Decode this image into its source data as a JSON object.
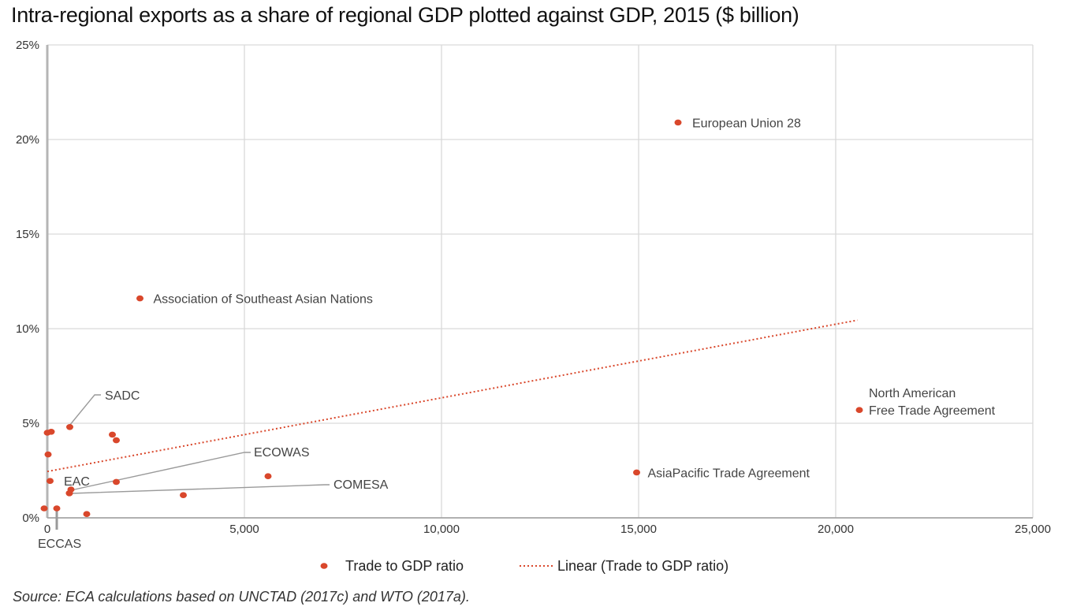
{
  "chart_data": {
    "type": "scatter",
    "title": "Intra-regional exports as a share of regional GDP plotted against GDP, 2015 ($ billion)",
    "xlabel": "",
    "ylabel": "",
    "xlim": [
      0,
      25000
    ],
    "ylim": [
      0,
      25
    ],
    "x_ticks": [
      "0",
      "5,000",
      "10,000",
      "15,000",
      "20,000",
      "25,000"
    ],
    "y_ticks": [
      "0%",
      "5%",
      "10%",
      "15%",
      "20%",
      "25%"
    ],
    "grid": true,
    "legend_position": "bottom",
    "colors": {
      "points": "#d9472b",
      "trend": "#d9472b",
      "grid": "#d9d9d9",
      "leader": "#9a9a9a"
    },
    "series": [
      {
        "name": "Trade to GDP ratio",
        "points": [
          {
            "x": 16000,
            "y": 20.9,
            "label": "European Union 28"
          },
          {
            "x": 2350,
            "y": 11.6,
            "label": "Association of Southeast Asian Nations"
          },
          {
            "x": 20600,
            "y": 5.7,
            "label": "North American\nFree Trade Agreement"
          },
          {
            "x": 14950,
            "y": 2.4,
            "label": "AsiaPacific Trade Agreement"
          },
          {
            "x": 570,
            "y": 4.8,
            "label": "SADC"
          },
          {
            "x": 600,
            "y": 1.5,
            "label": "ECOWAS"
          },
          {
            "x": 560,
            "y": 1.3,
            "label": "COMESA"
          },
          {
            "x": 560,
            "y": 1.3,
            "label": "EAC"
          },
          {
            "x": 240,
            "y": 0.5,
            "label": "ECCAS"
          },
          {
            "x": 0,
            "y": 4.5
          },
          {
            "x": 100,
            "y": 4.55
          },
          {
            "x": 20,
            "y": 3.35
          },
          {
            "x": 70,
            "y": 1.95
          },
          {
            "x": -80,
            "y": 0.5
          },
          {
            "x": 1650,
            "y": 4.4
          },
          {
            "x": 1750,
            "y": 4.1
          },
          {
            "x": 1750,
            "y": 1.9
          },
          {
            "x": 3450,
            "y": 1.2
          },
          {
            "x": 5600,
            "y": 2.2
          },
          {
            "x": 1000,
            "y": 0.2
          }
        ]
      },
      {
        "name": "Linear  (Trade to GDP ratio)",
        "type": "trendline",
        "x": [
          0,
          20550
        ],
        "y": [
          2.45,
          10.45
        ]
      }
    ]
  },
  "source": "Source: ECA calculations based on UNCTAD (2017c) and WTO (2017a)."
}
